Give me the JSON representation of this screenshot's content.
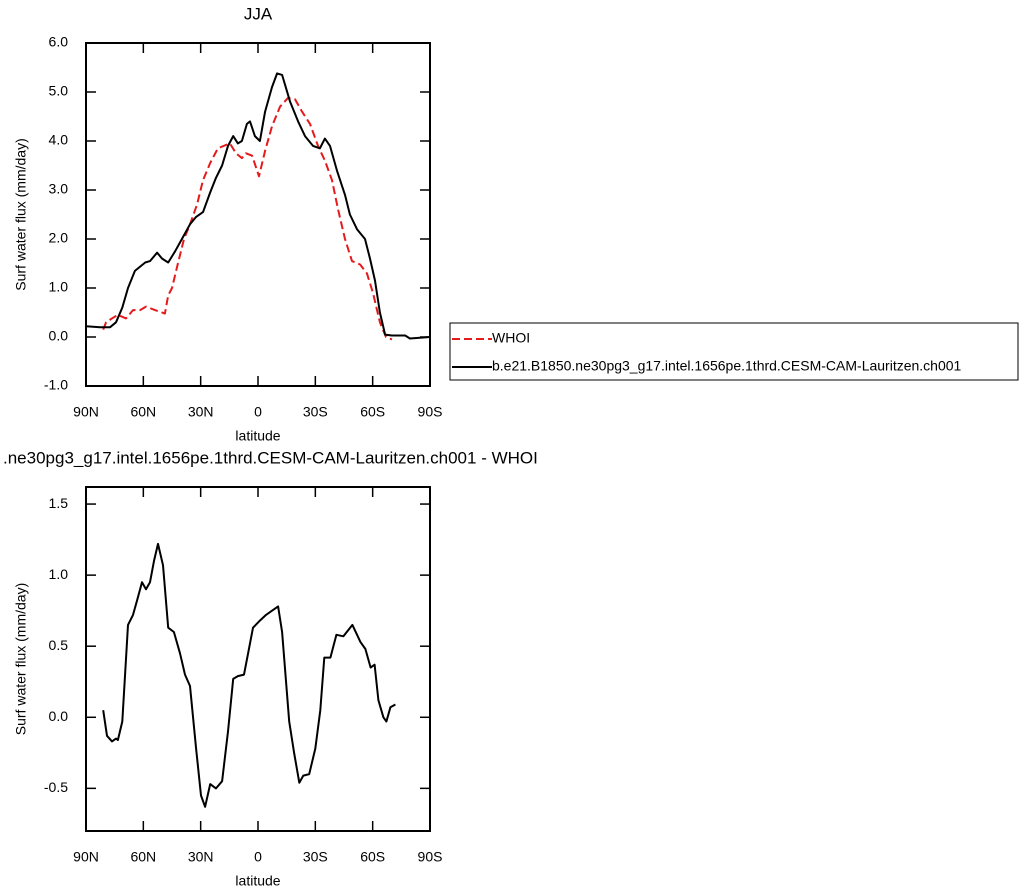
{
  "chart_data": [
    {
      "type": "line",
      "title": "JJA",
      "xlabel": "latitude",
      "ylabel": "Surf water flux (mm/day)",
      "xlim": [
        90,
        -90
      ],
      "xticks": [
        {
          "value": 90,
          "label": "90N"
        },
        {
          "value": 60,
          "label": "60N"
        },
        {
          "value": 30,
          "label": "30N"
        },
        0,
        {
          "value": -30,
          "label": "30S"
        },
        {
          "value": -60,
          "label": "60S"
        },
        {
          "value": -90,
          "label": "90S"
        }
      ],
      "ylim": [
        -1,
        6
      ],
      "yticks": [
        {
          "value": -1,
          "label": "-1.0"
        },
        {
          "value": 0,
          "label": "0.0"
        },
        {
          "value": 1,
          "label": "1.0"
        },
        {
          "value": 2,
          "label": "2.0"
        },
        {
          "value": 3,
          "label": "3.0"
        },
        {
          "value": 4,
          "label": "4.0"
        },
        {
          "value": 5,
          "label": "5.0"
        },
        {
          "value": 6,
          "label": "6.0"
        }
      ],
      "legend": "right",
      "series": [
        {
          "name": "WHOI",
          "color": "#e41a1c",
          "line_style": "dashed",
          "x": [
            81,
            79.5,
            76.4,
            73.3,
            69,
            65.4,
            61.7,
            58.6,
            53.9,
            48.7,
            47,
            45,
            41.9,
            38.7,
            35.6,
            31.9,
            28.8,
            25,
            21,
            14.7,
            11.5,
            8.4,
            6.3,
            3.1,
            -0.5,
            -3.7,
            -7.3,
            -11.5,
            -15.7,
            -19.4,
            -23,
            -27.2,
            -31.4,
            -35,
            -38.7,
            -41.9,
            -45.5,
            -49.2,
            -53.4,
            -57,
            -60.2,
            -63.8,
            -67,
            -70.1
          ],
          "values": [
            0.15,
            0.3,
            0.38,
            0.45,
            0.38,
            0.55,
            0.55,
            0.62,
            0.55,
            0.48,
            0.85,
            1.0,
            1.5,
            2.0,
            2.3,
            2.7,
            3.2,
            3.55,
            3.85,
            3.95,
            3.75,
            3.65,
            3.75,
            3.7,
            3.28,
            3.8,
            4.3,
            4.7,
            4.88,
            4.85,
            4.6,
            4.35,
            3.9,
            3.6,
            3.2,
            2.6,
            2.0,
            1.55,
            1.48,
            1.3,
            0.9,
            0.3,
            0.0,
            -0.05
          ]
        },
        {
          "name": "b.e21.B1850.ne30pg3_g17.intel.1656pe.1thrd.CESM-CAM-Lauritzen.ch001",
          "color": "#000000",
          "line_style": "solid",
          "x": [
            90,
            82.7,
            77.4,
            74.3,
            71,
            68,
            64.4,
            59,
            56.5,
            52.8,
            50.2,
            47,
            43.4,
            39.8,
            35.6,
            32.4,
            28.8,
            25,
            22,
            18.8,
            15.7,
            13,
            10.5,
            8.4,
            5.8,
            4.2,
            1.6,
            -1,
            -3.7,
            -7.3,
            -10,
            -12.6,
            -16.8,
            -21,
            -24.6,
            -28.8,
            -32.4,
            -35,
            -37.7,
            -41.3,
            -45.5,
            -48.1,
            -51.8,
            -56,
            -58.6,
            -61.2,
            -63.8,
            -66.5,
            -70,
            -77,
            -79.5,
            -90
          ],
          "values": [
            0.22,
            0.2,
            0.2,
            0.3,
            0.6,
            1.0,
            1.35,
            1.52,
            1.55,
            1.72,
            1.6,
            1.52,
            1.75,
            2.0,
            2.3,
            2.45,
            2.55,
            2.95,
            3.25,
            3.5,
            3.9,
            4.1,
            3.95,
            4.0,
            4.35,
            4.4,
            4.1,
            4.0,
            4.6,
            5.1,
            5.38,
            5.35,
            4.8,
            4.4,
            4.1,
            3.9,
            3.85,
            4.05,
            3.9,
            3.4,
            2.9,
            2.5,
            2.2,
            2.0,
            1.6,
            1.15,
            0.5,
            0.05,
            0.03,
            0.03,
            -0.03,
            0.0
          ]
        }
      ]
    },
    {
      "type": "line",
      "title": ".ne30pg3_g17.intel.1656pe.1thrd.CESM-CAM-Lauritzen.ch001 - WHOI",
      "xlabel": "latitude",
      "ylabel": "Surf water flux (mm/day)",
      "xlim": [
        90,
        -90
      ],
      "xticks": [
        {
          "value": 90,
          "label": "90N"
        },
        {
          "value": 60,
          "label": "60N"
        },
        {
          "value": 30,
          "label": "30N"
        },
        0,
        {
          "value": -30,
          "label": "30S"
        },
        {
          "value": -60,
          "label": "60S"
        },
        {
          "value": -90,
          "label": "90S"
        }
      ],
      "ylim": [
        -0.8,
        1.62
      ],
      "yticks": [
        -0.5,
        {
          "value": 0,
          "label": "0.0"
        },
        0.5,
        {
          "value": 1,
          "label": "1.0"
        },
        1.5
      ],
      "series": [
        {
          "color": "#000000",
          "line_style": "solid",
          "x": [
            81,
            79,
            76.4,
            74.3,
            73.3,
            71,
            68,
            65.4,
            63.3,
            60.7,
            58.6,
            56.5,
            54.4,
            52.3,
            49.7,
            47,
            44,
            40.8,
            38.2,
            35.6,
            32.4,
            29.8,
            27.7,
            25,
            22,
            18.8,
            15.7,
            13,
            10.5,
            7.3,
            5.2,
            2.6,
            -1,
            -4.2,
            -7.3,
            -10.5,
            -12.6,
            -16.3,
            -18.9,
            -21.6,
            -23.7,
            -26.8,
            -30,
            -32.6,
            -34.7,
            -37.9,
            -41,
            -44.7,
            -49.4,
            -53.6,
            -56.2,
            -58.9,
            -61,
            -63,
            -65.6,
            -67.2,
            -69.3,
            -71.9
          ],
          "values": [
            0.05,
            -0.13,
            -0.17,
            -0.15,
            -0.16,
            -0.03,
            0.65,
            0.72,
            0.82,
            0.95,
            0.9,
            0.95,
            1.1,
            1.22,
            1.07,
            0.63,
            0.6,
            0.45,
            0.3,
            0.22,
            -0.22,
            -0.55,
            -0.63,
            -0.47,
            -0.5,
            -0.45,
            -0.1,
            0.27,
            0.29,
            0.3,
            0.45,
            0.63,
            0.68,
            0.72,
            0.75,
            0.78,
            0.6,
            -0.03,
            -0.25,
            -0.46,
            -0.41,
            -0.4,
            -0.22,
            0.05,
            0.42,
            0.42,
            0.58,
            0.57,
            0.65,
            0.53,
            0.48,
            0.35,
            0.37,
            0.12,
            0.0,
            -0.03,
            0.07,
            0.09
          ]
        }
      ]
    }
  ]
}
